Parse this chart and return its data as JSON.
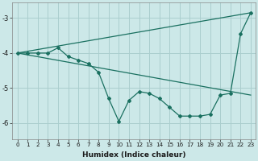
{
  "xlabel": "Humidex (Indice chaleur)",
  "ylabel": "",
  "background_color": "#cce8e8",
  "grid_color": "#aacece",
  "line_color": "#1a7060",
  "xlim": [
    -0.5,
    23.5
  ],
  "ylim": [
    -6.45,
    -2.55
  ],
  "yticks": [
    -6,
    -5,
    -4,
    -3
  ],
  "xticks": [
    0,
    1,
    2,
    3,
    4,
    5,
    6,
    7,
    8,
    9,
    10,
    11,
    12,
    13,
    14,
    15,
    16,
    17,
    18,
    19,
    20,
    21,
    22,
    23
  ],
  "series": [
    {
      "x": [
        0,
        1,
        2,
        3,
        4,
        5,
        6,
        7,
        8,
        9,
        10,
        11,
        12,
        13,
        14,
        15,
        16,
        17,
        18,
        19,
        20,
        21,
        22,
        23
      ],
      "y": [
        -4.0,
        -4.0,
        -4.0,
        -4.0,
        -3.85,
        -4.1,
        -4.2,
        -4.3,
        -4.55,
        -5.3,
        -5.95,
        -5.35,
        -5.1,
        -5.15,
        -5.3,
        -5.55,
        -5.8,
        -5.8,
        -5.8,
        -5.75,
        -5.2,
        -5.15,
        -3.45,
        -2.85
      ],
      "marker": true
    },
    {
      "x": [
        0,
        23
      ],
      "y": [
        -4.0,
        -2.85
      ],
      "marker": false
    },
    {
      "x": [
        0,
        23
      ],
      "y": [
        -4.0,
        -5.2
      ],
      "marker": false
    }
  ]
}
